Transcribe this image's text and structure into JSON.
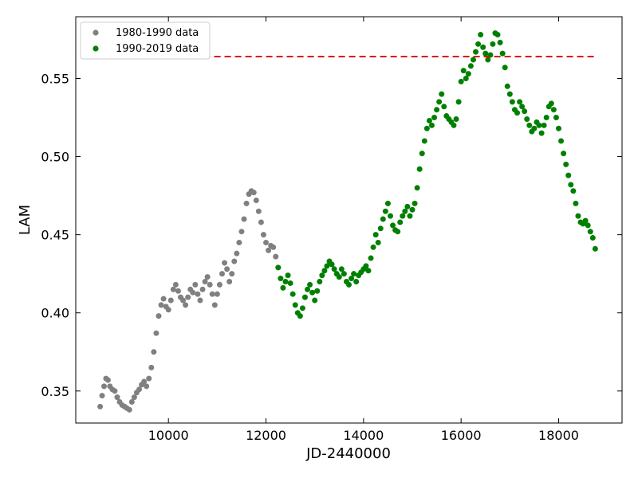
{
  "chart_data": {
    "type": "scatter",
    "title": "",
    "xlabel": "JD-2440000",
    "ylabel": "LAM",
    "xlim": [
      8100,
      19300
    ],
    "ylim": [
      0.3295,
      0.5895
    ],
    "xticks": [
      10000,
      12000,
      14000,
      16000,
      18000
    ],
    "xtick_labels": [
      "10000",
      "12000",
      "14000",
      "16000",
      "18000"
    ],
    "yticks": [
      0.35,
      0.4,
      0.45,
      0.5,
      0.55
    ],
    "ytick_labels": [
      "0.35",
      "0.40",
      "0.45",
      "0.50",
      "0.55"
    ],
    "grid": false,
    "legend_position": "upper-left",
    "reference_line": {
      "y": 0.564,
      "x": [
        8600,
        18750
      ],
      "color": "#dd0000",
      "style": "dashed"
    },
    "series": [
      {
        "name": "1980-1990 data",
        "color": "#808080",
        "points": [
          [
            8600,
            0.34
          ],
          [
            8640,
            0.347
          ],
          [
            8680,
            0.353
          ],
          [
            8720,
            0.358
          ],
          [
            8760,
            0.357
          ],
          [
            8800,
            0.353
          ],
          [
            8850,
            0.351
          ],
          [
            8900,
            0.35
          ],
          [
            8950,
            0.346
          ],
          [
            9000,
            0.343
          ],
          [
            9050,
            0.341
          ],
          [
            9100,
            0.34
          ],
          [
            9150,
            0.339
          ],
          [
            9200,
            0.338
          ],
          [
            9250,
            0.343
          ],
          [
            9300,
            0.346
          ],
          [
            9350,
            0.349
          ],
          [
            9400,
            0.351
          ],
          [
            9450,
            0.354
          ],
          [
            9500,
            0.356
          ],
          [
            9550,
            0.353
          ],
          [
            9600,
            0.358
          ],
          [
            9650,
            0.365
          ],
          [
            9700,
            0.375
          ],
          [
            9750,
            0.387
          ],
          [
            9800,
            0.398
          ],
          [
            9850,
            0.405
          ],
          [
            9900,
            0.409
          ],
          [
            9950,
            0.404
          ],
          [
            10000,
            0.402
          ],
          [
            10050,
            0.408
          ],
          [
            10100,
            0.415
          ],
          [
            10150,
            0.418
          ],
          [
            10200,
            0.414
          ],
          [
            10250,
            0.41
          ],
          [
            10300,
            0.408
          ],
          [
            10350,
            0.405
          ],
          [
            10400,
            0.41
          ],
          [
            10450,
            0.415
          ],
          [
            10500,
            0.413
          ],
          [
            10550,
            0.418
          ],
          [
            10600,
            0.412
          ],
          [
            10650,
            0.408
          ],
          [
            10700,
            0.415
          ],
          [
            10750,
            0.42
          ],
          [
            10800,
            0.423
          ],
          [
            10850,
            0.418
          ],
          [
            10900,
            0.412
          ],
          [
            10950,
            0.405
          ],
          [
            11000,
            0.412
          ],
          [
            11050,
            0.418
          ],
          [
            11100,
            0.425
          ],
          [
            11150,
            0.432
          ],
          [
            11200,
            0.428
          ],
          [
            11250,
            0.42
          ],
          [
            11300,
            0.425
          ],
          [
            11350,
            0.433
          ],
          [
            11400,
            0.438
          ],
          [
            11450,
            0.445
          ],
          [
            11500,
            0.452
          ],
          [
            11550,
            0.46
          ],
          [
            11600,
            0.47
          ],
          [
            11650,
            0.476
          ],
          [
            11700,
            0.478
          ],
          [
            11750,
            0.477
          ],
          [
            11800,
            0.472
          ],
          [
            11850,
            0.465
          ],
          [
            11900,
            0.458
          ],
          [
            11950,
            0.45
          ],
          [
            12000,
            0.445
          ],
          [
            12050,
            0.44
          ],
          [
            12100,
            0.443
          ],
          [
            12150,
            0.442
          ],
          [
            12200,
            0.436
          ],
          [
            12250,
            0.429
          ]
        ]
      },
      {
        "name": "1990-2019 data",
        "color": "#008000",
        "points": [
          [
            12250,
            0.429
          ],
          [
            12300,
            0.422
          ],
          [
            12350,
            0.416
          ],
          [
            12400,
            0.42
          ],
          [
            12450,
            0.424
          ],
          [
            12500,
            0.419
          ],
          [
            12550,
            0.412
          ],
          [
            12600,
            0.405
          ],
          [
            12650,
            0.4
          ],
          [
            12700,
            0.398
          ],
          [
            12750,
            0.403
          ],
          [
            12800,
            0.41
          ],
          [
            12850,
            0.415
          ],
          [
            12900,
            0.418
          ],
          [
            12950,
            0.413
          ],
          [
            13000,
            0.408
          ],
          [
            13050,
            0.414
          ],
          [
            13100,
            0.42
          ],
          [
            13150,
            0.424
          ],
          [
            13200,
            0.427
          ],
          [
            13250,
            0.43
          ],
          [
            13300,
            0.433
          ],
          [
            13350,
            0.431
          ],
          [
            13400,
            0.428
          ],
          [
            13450,
            0.425
          ],
          [
            13500,
            0.423
          ],
          [
            13550,
            0.428
          ],
          [
            13600,
            0.425
          ],
          [
            13650,
            0.42
          ],
          [
            13700,
            0.418
          ],
          [
            13750,
            0.422
          ],
          [
            13800,
            0.425
          ],
          [
            13850,
            0.42
          ],
          [
            13900,
            0.424
          ],
          [
            13950,
            0.426
          ],
          [
            14000,
            0.428
          ],
          [
            14050,
            0.43
          ],
          [
            14100,
            0.427
          ],
          [
            14150,
            0.435
          ],
          [
            14200,
            0.442
          ],
          [
            14250,
            0.45
          ],
          [
            14300,
            0.445
          ],
          [
            14350,
            0.454
          ],
          [
            14400,
            0.46
          ],
          [
            14450,
            0.465
          ],
          [
            14500,
            0.47
          ],
          [
            14550,
            0.462
          ],
          [
            14600,
            0.456
          ],
          [
            14650,
            0.453
          ],
          [
            14700,
            0.452
          ],
          [
            14750,
            0.458
          ],
          [
            14800,
            0.462
          ],
          [
            14850,
            0.465
          ],
          [
            14900,
            0.468
          ],
          [
            14950,
            0.462
          ],
          [
            15000,
            0.466
          ],
          [
            15050,
            0.47
          ],
          [
            15100,
            0.48
          ],
          [
            15150,
            0.492
          ],
          [
            15200,
            0.502
          ],
          [
            15250,
            0.51
          ],
          [
            15300,
            0.518
          ],
          [
            15350,
            0.523
          ],
          [
            15400,
            0.52
          ],
          [
            15450,
            0.525
          ],
          [
            15500,
            0.53
          ],
          [
            15550,
            0.535
          ],
          [
            15600,
            0.54
          ],
          [
            15650,
            0.532
          ],
          [
            15700,
            0.526
          ],
          [
            15750,
            0.524
          ],
          [
            15800,
            0.522
          ],
          [
            15850,
            0.52
          ],
          [
            15900,
            0.524
          ],
          [
            15950,
            0.535
          ],
          [
            16000,
            0.548
          ],
          [
            16050,
            0.555
          ],
          [
            16100,
            0.55
          ],
          [
            16150,
            0.553
          ],
          [
            16200,
            0.558
          ],
          [
            16250,
            0.562
          ],
          [
            16300,
            0.567
          ],
          [
            16350,
            0.572
          ],
          [
            16400,
            0.578
          ],
          [
            16450,
            0.57
          ],
          [
            16500,
            0.566
          ],
          [
            16550,
            0.562
          ],
          [
            16600,
            0.565
          ],
          [
            16650,
            0.572
          ],
          [
            16700,
            0.579
          ],
          [
            16750,
            0.578
          ],
          [
            16800,
            0.573
          ],
          [
            16850,
            0.566
          ],
          [
            16900,
            0.557
          ],
          [
            16950,
            0.545
          ],
          [
            17000,
            0.54
          ],
          [
            17050,
            0.535
          ],
          [
            17100,
            0.53
          ],
          [
            17150,
            0.528
          ],
          [
            17200,
            0.535
          ],
          [
            17250,
            0.532
          ],
          [
            17300,
            0.529
          ],
          [
            17350,
            0.524
          ],
          [
            17400,
            0.52
          ],
          [
            17450,
            0.516
          ],
          [
            17500,
            0.518
          ],
          [
            17550,
            0.522
          ],
          [
            17600,
            0.52
          ],
          [
            17650,
            0.515
          ],
          [
            17700,
            0.52
          ],
          [
            17750,
            0.525
          ],
          [
            17800,
            0.532
          ],
          [
            17850,
            0.534
          ],
          [
            17900,
            0.53
          ],
          [
            17950,
            0.525
          ],
          [
            18000,
            0.518
          ],
          [
            18050,
            0.51
          ],
          [
            18100,
            0.502
          ],
          [
            18150,
            0.495
          ],
          [
            18200,
            0.488
          ],
          [
            18250,
            0.482
          ],
          [
            18300,
            0.478
          ],
          [
            18350,
            0.47
          ],
          [
            18400,
            0.462
          ],
          [
            18450,
            0.458
          ],
          [
            18500,
            0.457
          ],
          [
            18550,
            0.459
          ],
          [
            18600,
            0.456
          ],
          [
            18650,
            0.452
          ],
          [
            18700,
            0.448
          ],
          [
            18750,
            0.441
          ]
        ]
      }
    ]
  }
}
